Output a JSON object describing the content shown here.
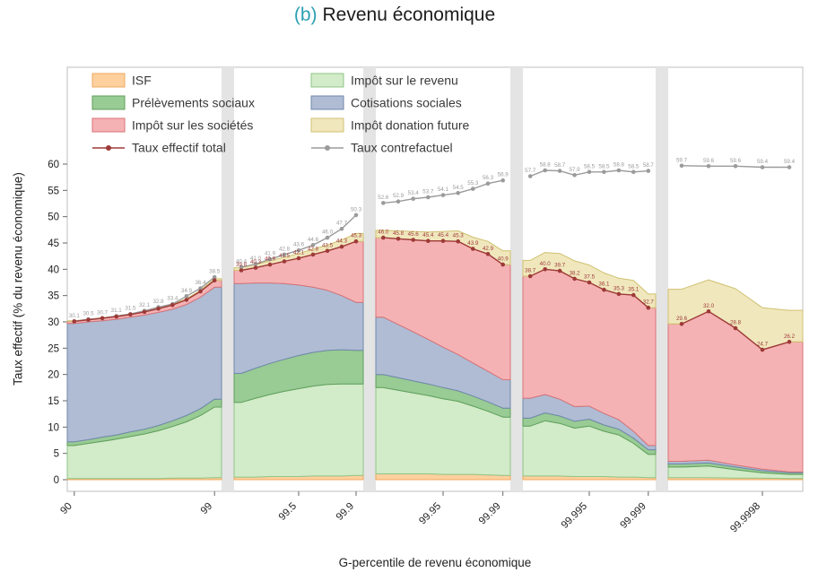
{
  "title": {
    "prefix": "(b)",
    "text": "Revenu économique",
    "prefix_color": "#2b9fb3"
  },
  "chart_data": {
    "type": "area",
    "title": "(b) Revenu économique",
    "xlabel": "G-percentile de revenu économique",
    "ylabel": "Taux effectif (% du revenu économique)",
    "ylim": [
      0,
      60
    ],
    "yticks": [
      0,
      5,
      10,
      15,
      20,
      25,
      30,
      35,
      40,
      45,
      50,
      55,
      60
    ],
    "grid": false,
    "legend_position": "top-inside",
    "stack_order": [
      "isf",
      "ir",
      "ps",
      "cs",
      "is",
      "don"
    ],
    "series_meta": {
      "isf": {
        "label": "ISF",
        "fill": "#fdd09e",
        "stroke": "#f0a95e"
      },
      "ir": {
        "label": "Impôt sur le revenu",
        "fill": "#d2ebc8",
        "stroke": "#8fc687"
      },
      "ps": {
        "label": "Prélèvements sociaux",
        "fill": "#99cb94",
        "stroke": "#5f9f5c"
      },
      "cs": {
        "label": "Cotisations sociales",
        "fill": "#afbcd4",
        "stroke": "#7188ad"
      },
      "is": {
        "label": "Impôt sur les sociétés",
        "fill": "#f5b2b4",
        "stroke": "#d97377"
      },
      "don": {
        "label": "Impôt donation future",
        "fill": "#f0e7bd",
        "stroke": "#cfc170"
      },
      "total": {
        "label": "Taux effectif total",
        "color": "#9e3a38"
      },
      "cf": {
        "label": "Taux contrefactuel",
        "color": "#9b9b9b"
      }
    },
    "legend": {
      "columns": [
        [
          "isf",
          "ps",
          "is",
          "total"
        ],
        [
          "ir",
          "cs",
          "don",
          "cf"
        ]
      ]
    },
    "xticks": [
      {
        "label": "90",
        "panel": 0,
        "index": 0
      },
      {
        "label": "99",
        "panel": 0,
        "index": 10
      },
      {
        "label": "99.5",
        "panel": 1,
        "index": 4
      },
      {
        "label": "99.9",
        "panel": 1,
        "index": 8
      },
      {
        "label": "99.95",
        "panel": 2,
        "index": 4
      },
      {
        "label": "99.99",
        "panel": 2,
        "index": 8
      },
      {
        "label": "99.995",
        "panel": 3,
        "index": 4
      },
      {
        "label": "99.999",
        "panel": 3,
        "index": 8
      },
      {
        "label": "99.9998",
        "panel": 4,
        "index": 3
      }
    ],
    "panels": [
      {
        "n": 11,
        "stacks": {
          "isf": [
            0.2,
            0.2,
            0.2,
            0.2,
            0.2,
            0.2,
            0.2,
            0.3,
            0.3,
            0.3,
            0.4
          ],
          "ir": [
            6.3,
            6.7,
            7.1,
            7.5,
            8.0,
            8.5,
            9.1,
            9.8,
            10.7,
            11.9,
            13.4
          ],
          "ps": [
            0.7,
            0.7,
            0.8,
            0.8,
            0.9,
            0.9,
            1.0,
            1.1,
            1.2,
            1.3,
            1.5
          ],
          "cs": [
            22.5,
            22.4,
            22.1,
            22.0,
            21.8,
            21.7,
            21.5,
            21.2,
            21.1,
            21.2,
            21.3
          ],
          "is": [
            0.4,
            0.4,
            0.5,
            0.5,
            0.5,
            0.6,
            0.7,
            0.8,
            0.9,
            1.1,
            1.3
          ],
          "don": [
            0.1,
            0.1,
            0.1,
            0.1,
            0.1,
            0.1,
            0.1,
            0.2,
            0.2,
            0.2,
            0.3
          ]
        },
        "total": {
          "values": [
            30.1,
            30.4,
            30.7,
            31.0,
            31.4,
            31.9,
            32.5,
            33.2,
            34.2,
            35.8,
            37.9
          ],
          "labels": [
            "",
            "",
            "",
            "",
            "",
            "",
            "",
            "",
            "",
            "",
            ""
          ]
        },
        "cf": {
          "values": [
            30.1,
            30.5,
            30.7,
            31.1,
            31.5,
            32.1,
            32.8,
            33.4,
            34.9,
            36.4,
            38.5
          ],
          "labels": [
            "30.1",
            "30.5",
            "30.7",
            "31.1",
            "31.5",
            "32.1",
            "32.8",
            "33.4",
            "34.9",
            "36.4",
            "38.5"
          ]
        }
      },
      {
        "n": 9,
        "stacks": {
          "isf": [
            0.5,
            0.5,
            0.6,
            0.6,
            0.6,
            0.7,
            0.7,
            0.7,
            0.8
          ],
          "ir": [
            14.2,
            15.0,
            15.6,
            16.2,
            16.7,
            17.1,
            17.4,
            17.5,
            17.4
          ],
          "ps": [
            5.5,
            5.7,
            5.9,
            6.1,
            6.3,
            6.4,
            6.5,
            6.5,
            6.4
          ],
          "cs": [
            17.1,
            16.2,
            15.3,
            14.4,
            13.4,
            12.4,
            11.4,
            10.3,
            9.1
          ],
          "is": [
            2.5,
            2.9,
            3.5,
            4.2,
            5.1,
            6.2,
            7.5,
            9.3,
            11.6
          ],
          "don": [
            0.5,
            0.6,
            0.7,
            0.8,
            0.9,
            1.0,
            1.1,
            1.3,
            1.5
          ]
        },
        "total": {
          "values": [
            39.8,
            40.3,
            40.9,
            41.5,
            42.1,
            42.8,
            43.5,
            44.3,
            45.3
          ],
          "labels": [
            "39.8",
            "40.3",
            "40.9",
            "41.5",
            "42.1",
            "42.8",
            "43.5",
            "44.3",
            "45.3"
          ]
        },
        "cf": {
          "values": [
            40.4,
            41.0,
            41.9,
            42.8,
            43.6,
            44.6,
            46.0,
            47.7,
            50.3
          ],
          "labels": [
            "40.4",
            "41.0",
            "41.9",
            "42.8",
            "43.6",
            "44.6",
            "46.0",
            "47.7",
            "50.3"
          ]
        }
      },
      {
        "n": 9,
        "stacks": {
          "isf": [
            1.1,
            1.1,
            1.1,
            1.1,
            1.0,
            1.0,
            1.0,
            0.9,
            0.8
          ],
          "ir": [
            16.4,
            15.9,
            15.4,
            14.9,
            14.4,
            13.9,
            13.0,
            12.1,
            11.1
          ],
          "ps": [
            2.5,
            2.4,
            2.3,
            2.2,
            2.1,
            2.0,
            1.9,
            1.8,
            1.7
          ],
          "cs": [
            10.9,
            10.1,
            9.3,
            8.5,
            7.7,
            6.9,
            6.3,
            5.8,
            5.4
          ],
          "is": [
            15.1,
            16.3,
            17.5,
            18.7,
            20.2,
            21.5,
            21.7,
            22.3,
            21.9
          ],
          "don": [
            1.4,
            1.5,
            1.6,
            1.7,
            1.8,
            2.0,
            2.2,
            2.4,
            2.6
          ]
        },
        "total": {
          "values": [
            46.0,
            45.8,
            45.6,
            45.4,
            45.4,
            45.3,
            43.9,
            42.9,
            40.9
          ],
          "labels": [
            "46.0",
            "45.8",
            "45.6",
            "45.4",
            "45.4",
            "45.3",
            "43.9",
            "42.9",
            "40.9"
          ]
        },
        "cf": {
          "values": [
            52.6,
            52.9,
            53.4,
            53.7,
            54.1,
            54.5,
            55.3,
            56.3,
            56.9
          ],
          "labels": [
            "52.6",
            "52.9",
            "53.4",
            "53.7",
            "54.1",
            "54.5",
            "55.3",
            "56.3",
            "56.9"
          ]
        }
      },
      {
        "n": 9,
        "stacks": {
          "isf": [
            0.7,
            0.7,
            0.7,
            0.6,
            0.6,
            0.6,
            0.5,
            0.5,
            0.4
          ],
          "ir": [
            9.5,
            10.5,
            10.0,
            9.2,
            9.6,
            8.6,
            8.0,
            6.4,
            4.4
          ],
          "ps": [
            1.5,
            1.5,
            1.4,
            1.3,
            1.3,
            1.2,
            1.1,
            1.0,
            0.9
          ],
          "cs": [
            3.8,
            3.5,
            3.2,
            2.8,
            2.5,
            2.2,
            1.8,
            1.3,
            0.8
          ],
          "is": [
            23.2,
            23.8,
            24.4,
            24.3,
            23.5,
            23.5,
            23.9,
            25.9,
            26.2
          ],
          "don": [
            3.0,
            3.2,
            3.3,
            3.4,
            3.3,
            3.2,
            3.0,
            2.8,
            2.6
          ]
        },
        "total": {
          "values": [
            38.7,
            40.0,
            39.7,
            38.2,
            37.5,
            36.1,
            35.3,
            35.1,
            32.7
          ],
          "labels": [
            "38.7",
            "40.0",
            "39.7",
            "38.2",
            "37.5",
            "36.1",
            "35.3",
            "35.1",
            "32.7"
          ]
        },
        "cf": {
          "values": [
            57.7,
            58.8,
            58.7,
            57.9,
            58.5,
            58.5,
            58.8,
            58.5,
            58.7
          ],
          "labels": [
            "57.7",
            "58.8",
            "58.7",
            "57.9",
            "58.5",
            "58.5",
            "58.8",
            "58.5",
            "58.7"
          ]
        }
      },
      {
        "n": 5,
        "stacks": {
          "isf": [
            0.4,
            0.4,
            0.3,
            0.3,
            0.2
          ],
          "ir": [
            2.0,
            2.2,
            1.6,
            1.0,
            0.8
          ],
          "ps": [
            0.6,
            0.6,
            0.5,
            0.4,
            0.3
          ],
          "cs": [
            0.5,
            0.5,
            0.4,
            0.3,
            0.2
          ],
          "is": [
            26.1,
            28.3,
            26.0,
            22.7,
            24.7
          ],
          "don": [
            6.6,
            6.0,
            7.5,
            8.0,
            6.0
          ]
        },
        "total": {
          "values": [
            29.6,
            32.0,
            28.8,
            24.7,
            26.2
          ],
          "labels": [
            "29.6",
            "32.0",
            "28.8",
            "24.7",
            "26.2"
          ]
        },
        "cf": {
          "values": [
            59.7,
            59.6,
            59.6,
            59.4,
            59.4
          ],
          "labels": [
            "59.7",
            "59.6",
            "59.6",
            "59.4",
            "59.4"
          ]
        }
      }
    ]
  }
}
